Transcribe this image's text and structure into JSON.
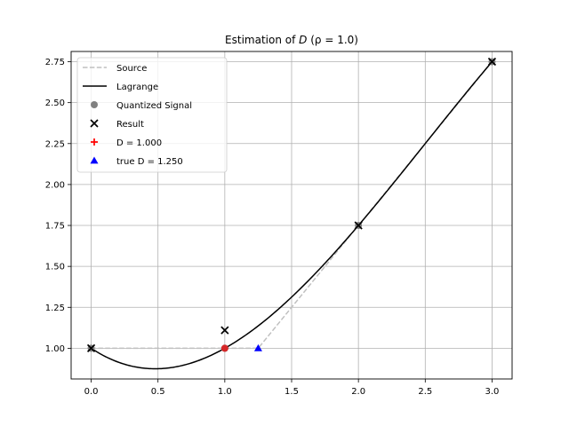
{
  "chart_data": {
    "type": "line",
    "title": {
      "prefix": "Estimation of ",
      "variable": "D",
      "suffix": " (ρ = 1.0)"
    },
    "xlabel": "",
    "ylabel": "",
    "xlim": [
      -0.15,
      3.15
    ],
    "ylim": [
      0.8125,
      2.8125
    ],
    "xticks": [
      0.0,
      0.5,
      1.0,
      1.5,
      2.0,
      2.5,
      3.0
    ],
    "xtick_labels": [
      "0.0",
      "0.5",
      "1.0",
      "1.5",
      "2.0",
      "2.5",
      "3.0"
    ],
    "yticks": [
      1.0,
      1.25,
      1.5,
      1.75,
      2.0,
      2.25,
      2.5,
      2.75
    ],
    "ytick_labels": [
      "1.00",
      "1.25",
      "1.50",
      "1.75",
      "2.00",
      "2.25",
      "2.50",
      "2.75"
    ],
    "grid": true,
    "legend_position": "top-left",
    "series": [
      {
        "name": "Source",
        "kind": "line",
        "style": "dashed",
        "color": "#bfbfbf",
        "x": [
          0.0,
          1.0,
          1.25,
          2.0,
          3.0
        ],
        "y": [
          1.0,
          1.0,
          1.0,
          1.75,
          2.75
        ]
      },
      {
        "name": "Lagrange",
        "kind": "curve",
        "style": "solid",
        "color": "#000000",
        "nodes_x": [
          0.0,
          1.0,
          2.0,
          3.0
        ],
        "nodes_y": [
          1.0,
          1.0,
          1.75,
          2.75
        ]
      },
      {
        "name": "Quantized Signal",
        "kind": "scatter",
        "marker": "circle",
        "color": "#808080",
        "x": [
          0.0,
          1.0,
          2.0,
          3.0
        ],
        "y": [
          1.0,
          1.0,
          1.75,
          2.75
        ]
      },
      {
        "name": "Result",
        "kind": "scatter",
        "marker": "x",
        "color": "#000000",
        "x": [
          0.0,
          1.0,
          2.0,
          3.0
        ],
        "y": [
          1.0,
          1.11,
          1.75,
          2.75
        ]
      },
      {
        "name": "D = 1.000",
        "kind": "scatter",
        "marker": "circle",
        "color": "#d62728",
        "x": [
          1.0
        ],
        "y": [
          1.0
        ]
      },
      {
        "name": "true D = 1.250",
        "kind": "scatter",
        "marker": "triangle",
        "color": "#0000ff",
        "x": [
          1.25
        ],
        "y": [
          1.0
        ]
      }
    ],
    "legend": [
      {
        "label": "Source",
        "symbol": "dashed-line",
        "color": "#bfbfbf"
      },
      {
        "label": "Lagrange",
        "symbol": "solid-line",
        "color": "#000000"
      },
      {
        "label": "Quantized Signal",
        "symbol": "circle",
        "color": "#808080"
      },
      {
        "label": "Result",
        "symbol": "x",
        "color": "#000000"
      },
      {
        "label": "D = 1.000",
        "symbol": "plus",
        "color": "#ff0000"
      },
      {
        "label": "true D = 1.250",
        "symbol": "triangle",
        "color": "#0000ff"
      }
    ]
  }
}
